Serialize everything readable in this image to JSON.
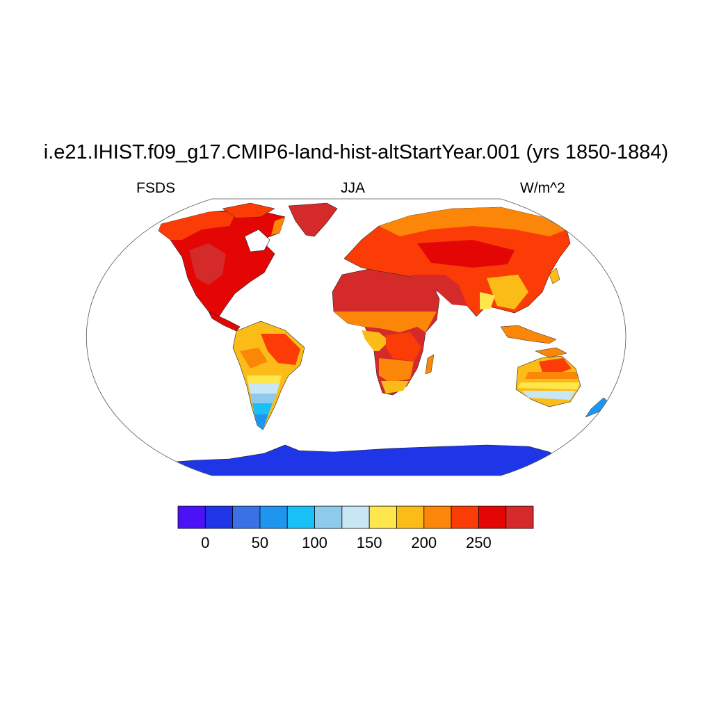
{
  "title": "i.e21.IHIST.f09_g17.CMIP6-land-hist-altStartYear.001 (yrs 1850-1884)",
  "left_label": "FSDS",
  "center_label": "JJA",
  "right_label": "W/m^2",
  "colorbar": {
    "colors": [
      "#4a12f5",
      "#1f35e8",
      "#3a72e6",
      "#1e96f0",
      "#18c0f5",
      "#8ecaec",
      "#c9e6f5",
      "#fde74c",
      "#fbbc17",
      "#fb8607",
      "#fb3c07",
      "#e40505",
      "#d42a2a"
    ],
    "tick_labels": [
      "0",
      "50",
      "100",
      "150",
      "200",
      "250"
    ]
  },
  "chart_data": {
    "type": "heatmap",
    "title": "i.e21.IHIST.f09_g17.CMIP6-land-hist-altStartYear.001 (yrs 1850-1884)",
    "variable": "FSDS",
    "season": "JJA",
    "units": "W/m^2",
    "contour_levels": [
      -25,
      0,
      25,
      50,
      75,
      100,
      125,
      150,
      175,
      200,
      225,
      250,
      275
    ],
    "colorbar_ticks": [
      0,
      50,
      100,
      150,
      200,
      250
    ]
  }
}
